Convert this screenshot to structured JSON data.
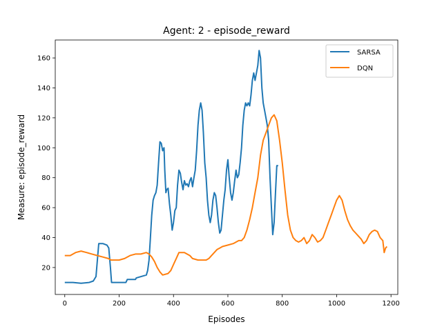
{
  "chart_data": {
    "type": "line",
    "title": "Agent: 2 - episode_reward",
    "xlabel": "Episodes",
    "ylabel": "Measure: episode_reward",
    "xlim": [
      -35,
      1225
    ],
    "ylim": [
      2,
      172
    ],
    "xticks": [
      0,
      200,
      400,
      600,
      800,
      1000,
      1200
    ],
    "yticks": [
      20,
      40,
      60,
      80,
      100,
      120,
      140,
      160
    ],
    "grid": false,
    "legend_position": "top-right",
    "series": [
      {
        "name": "SARSA",
        "color": "#1f77b4",
        "points": [
          [
            0,
            10
          ],
          [
            30,
            10
          ],
          [
            60,
            9.5
          ],
          [
            90,
            10
          ],
          [
            105,
            11
          ],
          [
            115,
            14
          ],
          [
            120,
            25
          ],
          [
            125,
            36
          ],
          [
            140,
            36
          ],
          [
            155,
            35
          ],
          [
            162,
            33
          ],
          [
            168,
            20
          ],
          [
            172,
            10
          ],
          [
            200,
            10
          ],
          [
            225,
            10
          ],
          [
            230,
            12
          ],
          [
            260,
            12
          ],
          [
            263,
            13
          ],
          [
            300,
            15
          ],
          [
            305,
            18
          ],
          [
            310,
            25
          ],
          [
            315,
            40
          ],
          [
            320,
            55
          ],
          [
            325,
            65
          ],
          [
            330,
            68
          ],
          [
            335,
            70
          ],
          [
            340,
            75
          ],
          [
            345,
            90
          ],
          [
            350,
            104
          ],
          [
            355,
            103
          ],
          [
            360,
            98
          ],
          [
            365,
            100
          ],
          [
            368,
            85
          ],
          [
            372,
            70
          ],
          [
            375,
            72
          ],
          [
            380,
            73
          ],
          [
            385,
            63
          ],
          [
            390,
            55
          ],
          [
            395,
            45
          ],
          [
            400,
            50
          ],
          [
            405,
            58
          ],
          [
            410,
            60
          ],
          [
            415,
            75
          ],
          [
            420,
            85
          ],
          [
            425,
            83
          ],
          [
            430,
            77
          ],
          [
            435,
            72
          ],
          [
            440,
            78
          ],
          [
            445,
            75
          ],
          [
            450,
            76
          ],
          [
            455,
            74
          ],
          [
            460,
            78
          ],
          [
            465,
            80
          ],
          [
            470,
            74
          ],
          [
            475,
            80
          ],
          [
            480,
            85
          ],
          [
            485,
            98
          ],
          [
            490,
            115
          ],
          [
            495,
            125
          ],
          [
            500,
            130
          ],
          [
            505,
            125
          ],
          [
            510,
            110
          ],
          [
            515,
            90
          ],
          [
            520,
            80
          ],
          [
            525,
            65
          ],
          [
            530,
            55
          ],
          [
            535,
            50
          ],
          [
            540,
            55
          ],
          [
            545,
            65
          ],
          [
            550,
            70
          ],
          [
            555,
            68
          ],
          [
            560,
            60
          ],
          [
            565,
            50
          ],
          [
            570,
            43
          ],
          [
            575,
            45
          ],
          [
            580,
            55
          ],
          [
            585,
            65
          ],
          [
            590,
            72
          ],
          [
            595,
            85
          ],
          [
            600,
            92
          ],
          [
            605,
            80
          ],
          [
            610,
            70
          ],
          [
            615,
            65
          ],
          [
            620,
            70
          ],
          [
            625,
            78
          ],
          [
            630,
            85
          ],
          [
            635,
            80
          ],
          [
            640,
            82
          ],
          [
            645,
            90
          ],
          [
            650,
            100
          ],
          [
            655,
            115
          ],
          [
            660,
            125
          ],
          [
            665,
            130
          ],
          [
            670,
            128
          ],
          [
            675,
            130
          ],
          [
            680,
            128
          ],
          [
            685,
            135
          ],
          [
            690,
            145
          ],
          [
            695,
            150
          ],
          [
            700,
            145
          ],
          [
            705,
            150
          ],
          [
            710,
            155
          ],
          [
            715,
            165
          ],
          [
            720,
            160
          ],
          [
            725,
            140
          ],
          [
            730,
            130
          ],
          [
            735,
            125
          ],
          [
            740,
            120
          ],
          [
            745,
            115
          ],
          [
            750,
            105
          ],
          [
            755,
            80
          ],
          [
            760,
            60
          ],
          [
            765,
            42
          ],
          [
            770,
            50
          ],
          [
            775,
            70
          ],
          [
            780,
            88
          ],
          [
            785,
            88
          ]
        ]
      },
      {
        "name": "DQN",
        "color": "#ff7f0e",
        "points": [
          [
            0,
            28
          ],
          [
            20,
            28
          ],
          [
            40,
            30
          ],
          [
            60,
            31
          ],
          [
            80,
            30
          ],
          [
            100,
            29
          ],
          [
            120,
            28
          ],
          [
            140,
            27
          ],
          [
            160,
            26
          ],
          [
            170,
            25
          ],
          [
            200,
            25
          ],
          [
            220,
            26
          ],
          [
            240,
            28
          ],
          [
            260,
            29
          ],
          [
            280,
            29
          ],
          [
            300,
            30
          ],
          [
            310,
            29
          ],
          [
            320,
            27
          ],
          [
            330,
            24
          ],
          [
            340,
            20
          ],
          [
            350,
            17
          ],
          [
            360,
            15
          ],
          [
            380,
            16
          ],
          [
            390,
            18
          ],
          [
            400,
            22
          ],
          [
            410,
            26
          ],
          [
            420,
            30
          ],
          [
            440,
            30
          ],
          [
            460,
            28
          ],
          [
            470,
            26
          ],
          [
            490,
            25
          ],
          [
            520,
            25
          ],
          [
            530,
            26
          ],
          [
            540,
            28
          ],
          [
            550,
            30
          ],
          [
            560,
            32
          ],
          [
            570,
            33
          ],
          [
            580,
            34
          ],
          [
            600,
            35
          ],
          [
            620,
            36
          ],
          [
            640,
            38
          ],
          [
            650,
            38
          ],
          [
            660,
            40
          ],
          [
            670,
            45
          ],
          [
            680,
            52
          ],
          [
            690,
            60
          ],
          [
            700,
            70
          ],
          [
            710,
            80
          ],
          [
            720,
            95
          ],
          [
            730,
            105
          ],
          [
            740,
            110
          ],
          [
            750,
            115
          ],
          [
            760,
            120
          ],
          [
            770,
            122
          ],
          [
            780,
            118
          ],
          [
            790,
            105
          ],
          [
            800,
            90
          ],
          [
            810,
            72
          ],
          [
            820,
            55
          ],
          [
            830,
            45
          ],
          [
            840,
            40
          ],
          [
            850,
            38
          ],
          [
            860,
            37
          ],
          [
            870,
            38
          ],
          [
            880,
            40
          ],
          [
            890,
            36
          ],
          [
            900,
            38
          ],
          [
            910,
            42
          ],
          [
            920,
            40
          ],
          [
            930,
            37
          ],
          [
            940,
            38
          ],
          [
            950,
            40
          ],
          [
            960,
            45
          ],
          [
            970,
            50
          ],
          [
            980,
            55
          ],
          [
            990,
            60
          ],
          [
            1000,
            65
          ],
          [
            1010,
            68
          ],
          [
            1020,
            65
          ],
          [
            1030,
            58
          ],
          [
            1040,
            52
          ],
          [
            1050,
            48
          ],
          [
            1060,
            45
          ],
          [
            1070,
            43
          ],
          [
            1080,
            41
          ],
          [
            1090,
            39
          ],
          [
            1100,
            36
          ],
          [
            1110,
            38
          ],
          [
            1120,
            42
          ],
          [
            1130,
            44
          ],
          [
            1140,
            45
          ],
          [
            1150,
            44
          ],
          [
            1160,
            40
          ],
          [
            1170,
            38
          ],
          [
            1175,
            30
          ],
          [
            1180,
            33
          ],
          [
            1185,
            34
          ]
        ]
      }
    ]
  }
}
